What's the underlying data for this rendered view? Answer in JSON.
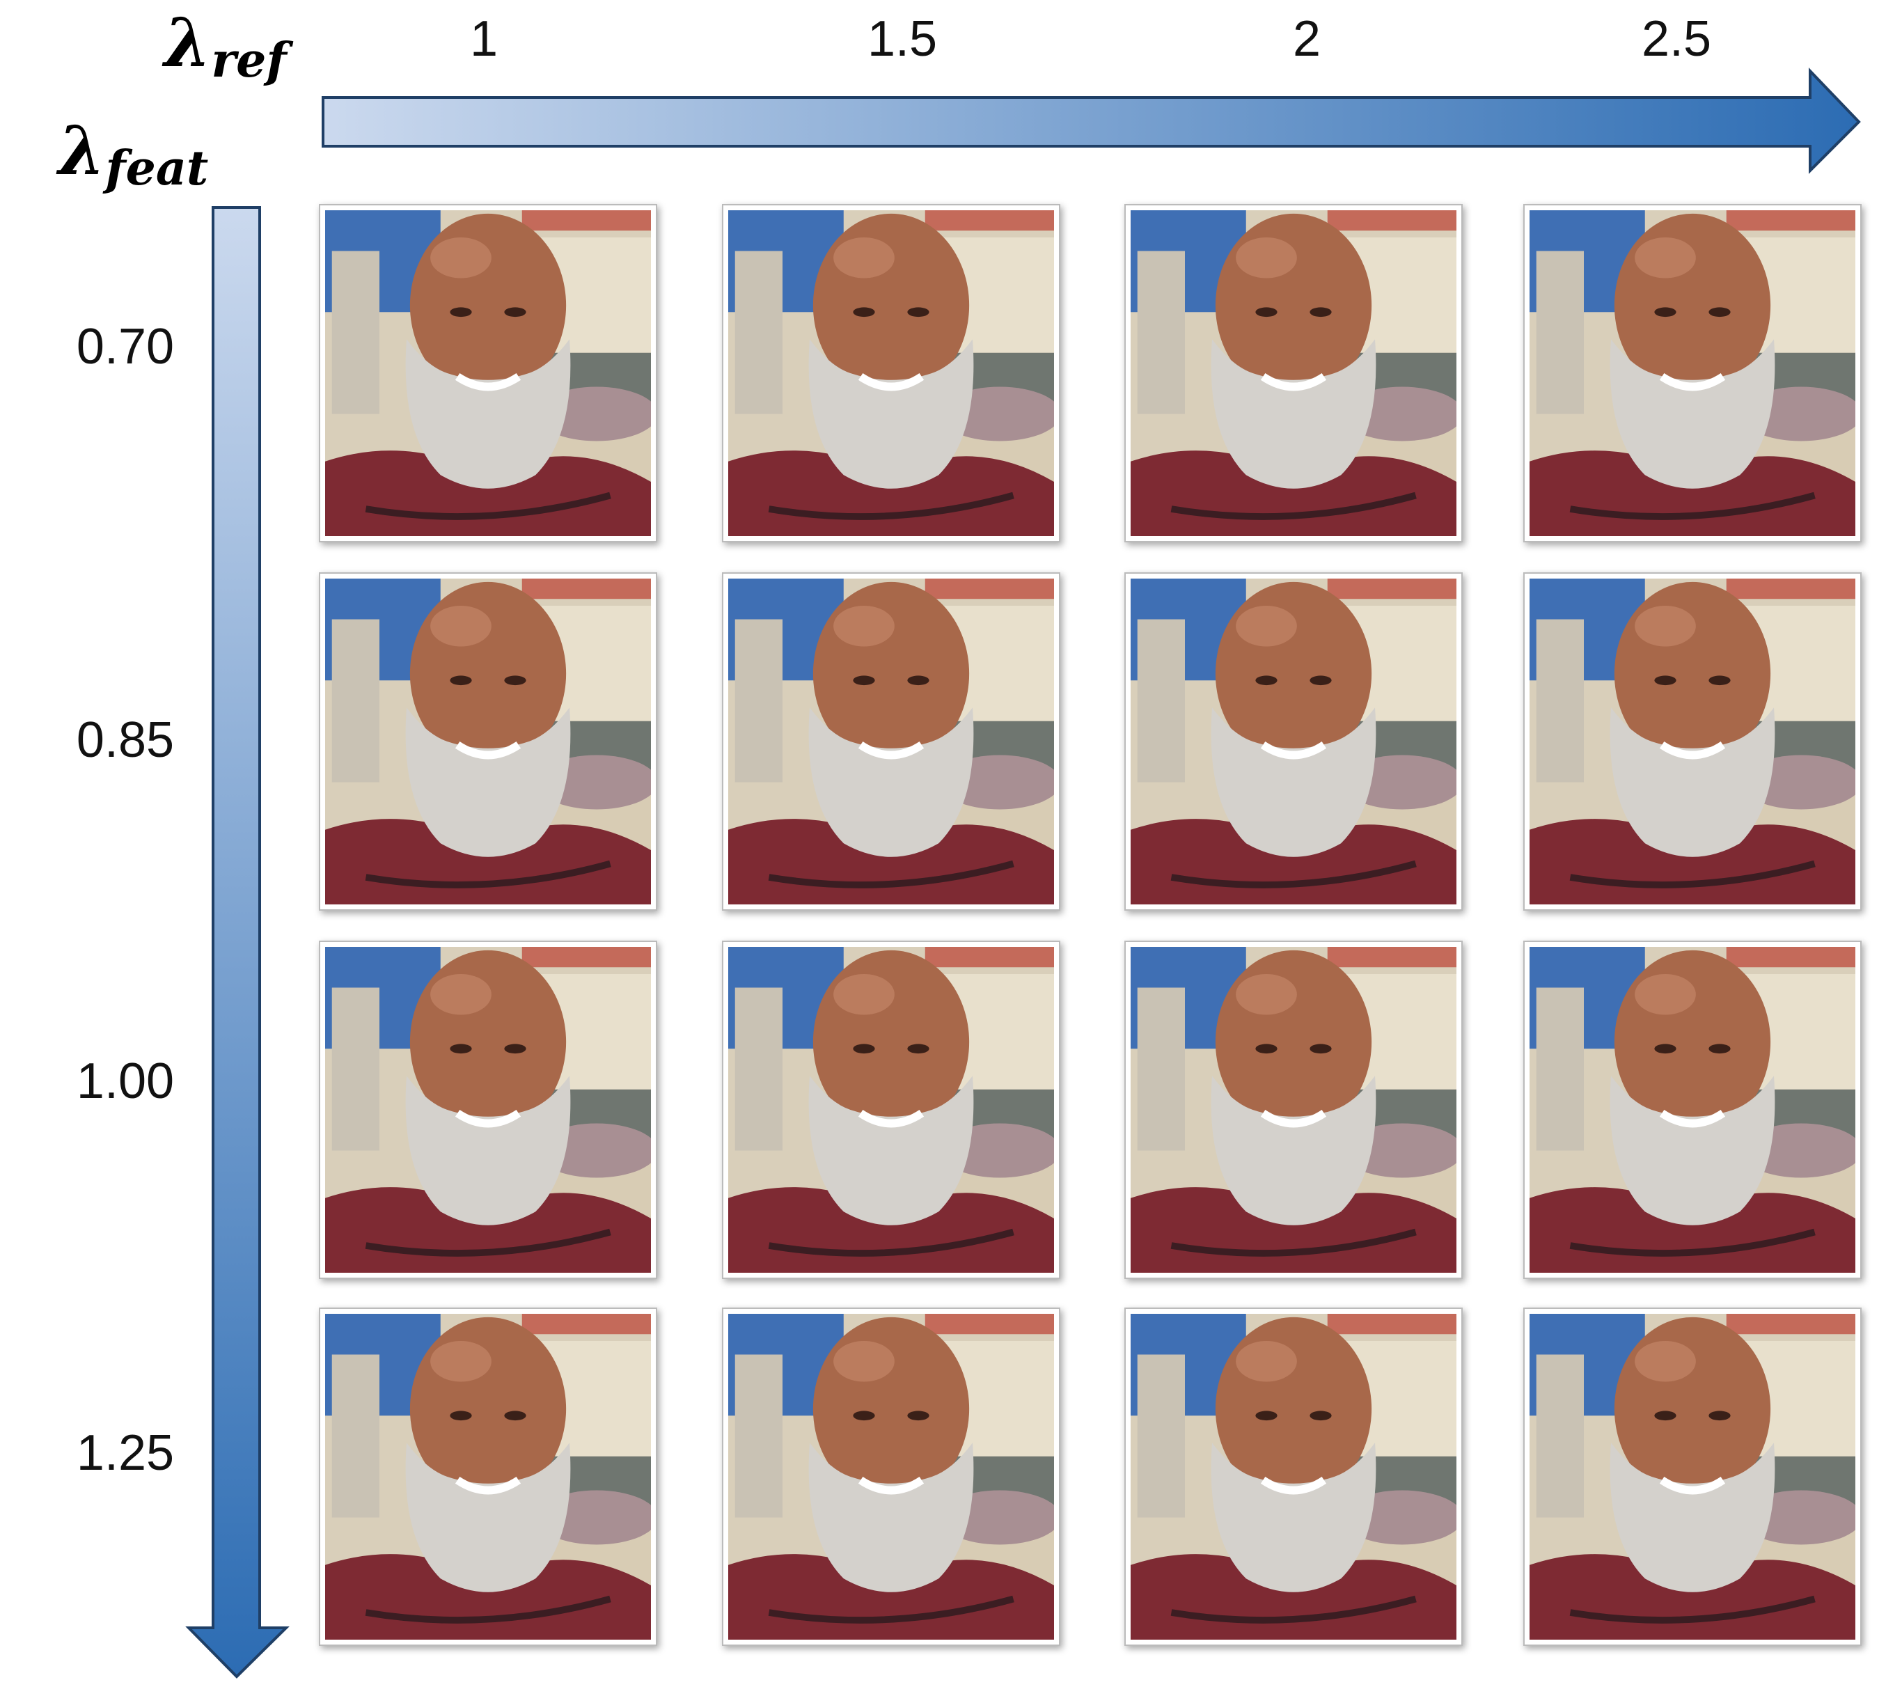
{
  "column_axis": {
    "symbol": "λ",
    "subscript": "ref",
    "labels": [
      "1",
      "1.5",
      "2",
      "2.5"
    ]
  },
  "row_axis": {
    "symbol": "λ",
    "subscript": "feat",
    "labels": [
      "0.70",
      "0.85",
      "1.00",
      "1.25"
    ]
  }
}
